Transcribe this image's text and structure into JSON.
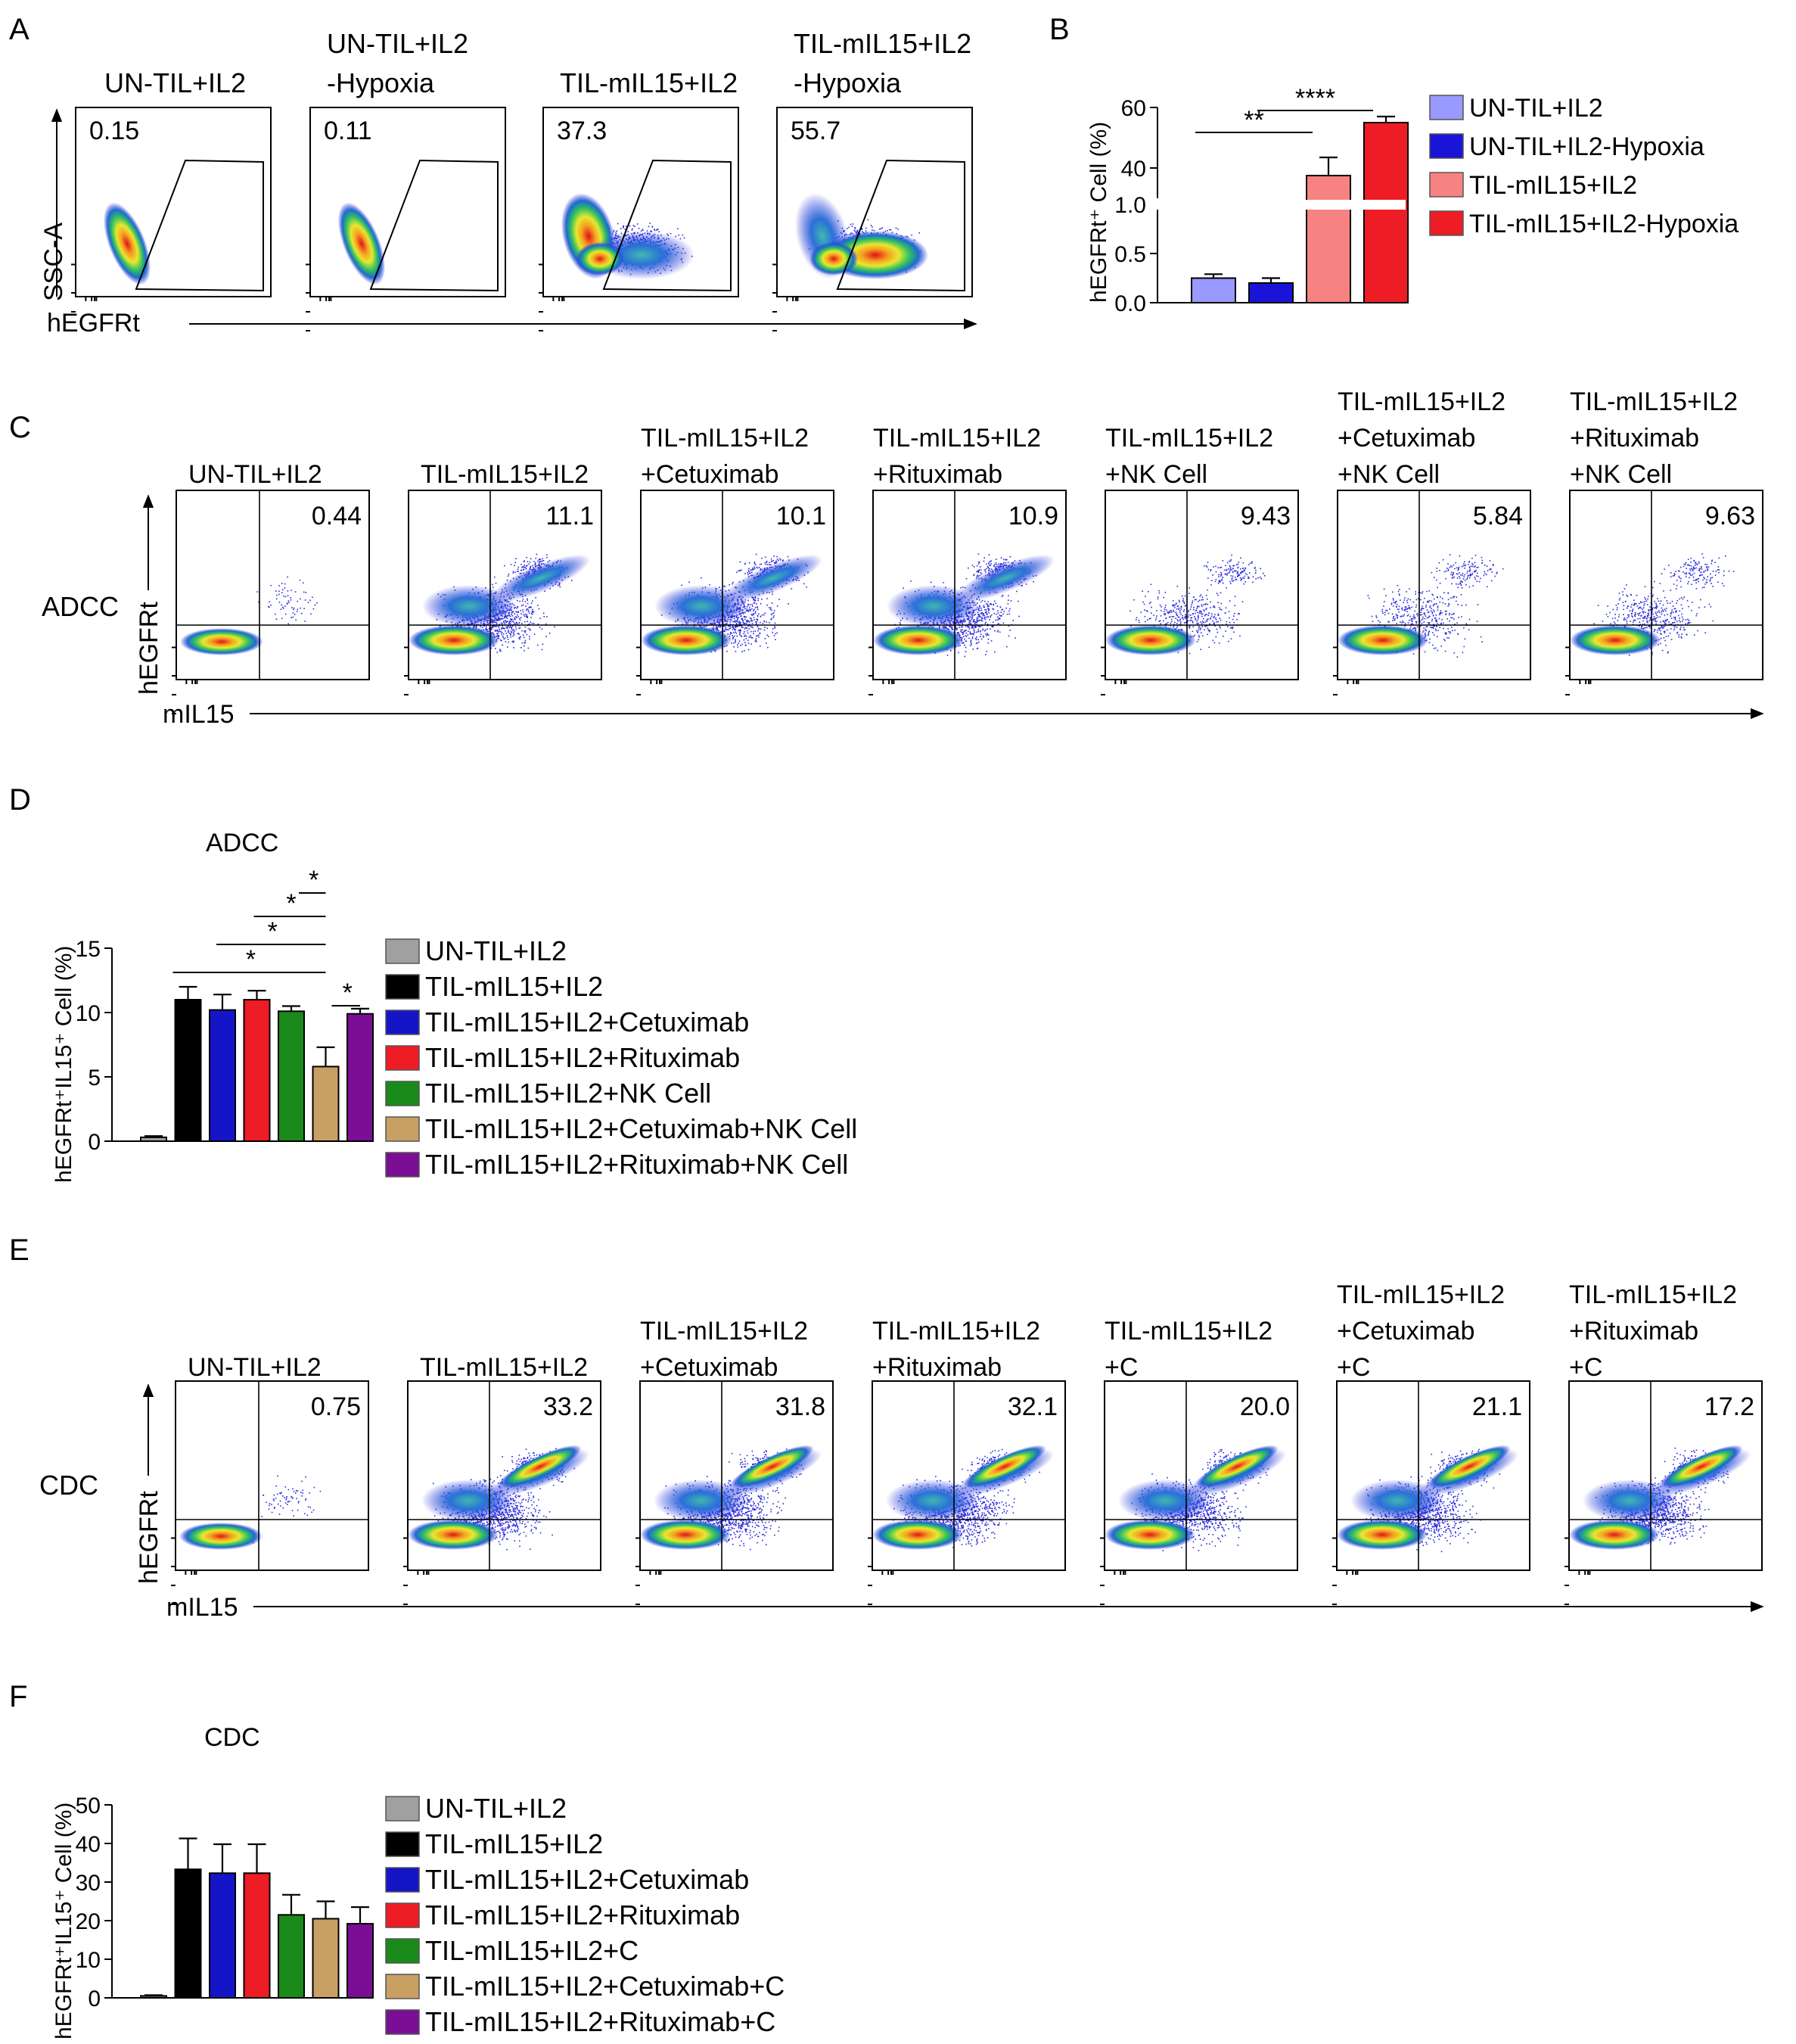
{
  "figure": {
    "panel_letters": [
      "A",
      "B",
      "C",
      "D",
      "E",
      "F"
    ]
  },
  "colors": {
    "un_til": "#9999ff",
    "un_til_hyp": "#1a14d9",
    "til": "#f68282",
    "til_hyp": "#ee1c24",
    "grey": "#a0a0a0",
    "black": "#000000",
    "blue": "#1515c8",
    "red": "#ee1c24",
    "green": "#1a8a1a",
    "tan": "#c8a064",
    "purple": "#7a0f96"
  },
  "panelA": {
    "titles": [
      [
        "UN-TIL+IL2"
      ],
      [
        "UN-TIL+IL2",
        "-Hypoxia"
      ],
      [
        "TIL-mIL15+IL2"
      ],
      [
        "TIL-mIL15+IL2",
        "-Hypoxia"
      ]
    ],
    "gate_values": [
      "0.15",
      "0.11",
      "37.3",
      "55.7"
    ],
    "y_axis_label": "SSC-A",
    "x_axis_label": "hEGFRt"
  },
  "panelC": {
    "row_label": "ADCC",
    "titles": [
      [
        "UN-TIL+IL2"
      ],
      [
        "TIL-mIL15+IL2"
      ],
      [
        "TIL-mIL15+IL2",
        "+Cetuximab"
      ],
      [
        "TIL-mIL15+IL2",
        "+Rituximab"
      ],
      [
        "TIL-mIL15+IL2",
        "+NK Cell"
      ],
      [
        "TIL-mIL15+IL2",
        "+Cetuximab",
        "+NK Cell"
      ],
      [
        "TIL-mIL15+IL2",
        "+Rituximab",
        "+NK Cell"
      ]
    ],
    "quadrant_values": [
      "0.44",
      "11.1",
      "10.1",
      "10.9",
      "9.43",
      "5.84",
      "9.63"
    ],
    "y_axis_label": "hEGFRt",
    "x_axis_label": "mIL15"
  },
  "panelE": {
    "row_label": "CDC",
    "titles": [
      [
        "UN-TIL+IL2"
      ],
      [
        "TIL-mIL15+IL2"
      ],
      [
        "TIL-mIL15+IL2",
        "+Cetuximab"
      ],
      [
        "TIL-mIL15+IL2",
        "+Rituximab"
      ],
      [
        "TIL-mIL15+IL2",
        "+C"
      ],
      [
        "TIL-mIL15+IL2",
        "+Cetuximab",
        "+C"
      ],
      [
        "TIL-mIL15+IL2",
        "+Rituximab",
        "+C"
      ]
    ],
    "quadrant_values": [
      "0.75",
      "33.2",
      "31.8",
      "32.1",
      "20.0",
      "21.1",
      "17.2"
    ],
    "y_axis_label": "hEGFRt",
    "x_axis_label": "mIL15"
  },
  "chart_data": [
    {
      "panel": "B",
      "type": "bar",
      "title": "",
      "ylabel": "hEGFRt⁺ Cell (%)",
      "broken_axis": true,
      "lower_ylim": [
        0,
        1.0
      ],
      "upper_ylim": [
        30,
        60
      ],
      "yticks_lower": [
        "0.0",
        "0.5",
        "1.0"
      ],
      "yticks_upper": [
        "40",
        "60"
      ],
      "categories": [
        "UN-TIL+IL2",
        "UN-TIL+IL2-Hypoxia",
        "TIL-mIL15+IL2",
        "TIL-mIL15+IL2-Hypoxia"
      ],
      "values": [
        0.25,
        0.2,
        37.5,
        55.0
      ],
      "errors": [
        0.04,
        0.05,
        6.0,
        2.0
      ],
      "colors": [
        "#9999ff",
        "#1a14d9",
        "#f68282",
        "#ee1c24"
      ],
      "significance": [
        {
          "label": "**",
          "from": 0,
          "to": 2
        },
        {
          "label": "****",
          "from": 1,
          "to": 3
        }
      ],
      "legend": [
        "UN-TIL+IL2",
        "UN-TIL+IL2-Hypoxia",
        "TIL-mIL15+IL2",
        "TIL-mIL15+IL2-Hypoxia"
      ]
    },
    {
      "panel": "D",
      "type": "bar",
      "title": "ADCC",
      "ylabel": "hEGFRt⁺IL15⁺ Cell (%)",
      "ylim": [
        0,
        15
      ],
      "yticks": [
        "0",
        "5",
        "10",
        "15"
      ],
      "categories": [
        "UN-TIL+IL2",
        "TIL-mIL15+IL2",
        "TIL-mIL15+IL2+Cetuximab",
        "TIL-mIL15+IL2+Rituximab",
        "TIL-mIL15+IL2+NK Cell",
        "TIL-mIL15+IL2+Cetuximab+NK Cell",
        "TIL-mIL15+IL2+Rituximab+NK Cell"
      ],
      "values": [
        0.3,
        11.0,
        10.2,
        11.0,
        10.1,
        5.8,
        9.9
      ],
      "errors": [
        0.1,
        1.0,
        1.2,
        0.7,
        0.4,
        1.5,
        0.4
      ],
      "colors": [
        "#a0a0a0",
        "#000000",
        "#1515c8",
        "#ee1c24",
        "#1a8a1a",
        "#c8a064",
        "#7a0f96"
      ],
      "significance": [
        {
          "label": "*",
          "from": 5,
          "to": 6
        },
        {
          "label": "*",
          "from": 4,
          "to": 5
        },
        {
          "label": "*",
          "from": 3,
          "to": 5
        },
        {
          "label": "*",
          "from": 2,
          "to": 5
        },
        {
          "label": "*",
          "from": 1,
          "to": 5
        }
      ],
      "legend": [
        "UN-TIL+IL2",
        "TIL-mIL15+IL2",
        "TIL-mIL15+IL2+Cetuximab",
        "TIL-mIL15+IL2+Rituximab",
        "TIL-mIL15+IL2+NK Cell",
        "TIL-mIL15+IL2+Cetuximab+NK Cell",
        "TIL-mIL15+IL2+Rituximab+NK Cell"
      ]
    },
    {
      "panel": "F",
      "type": "bar",
      "title": "CDC",
      "ylabel": "hEGFRt⁺IL15⁺ Cell (%)",
      "ylim": [
        0,
        50
      ],
      "yticks": [
        "0",
        "10",
        "20",
        "30",
        "40",
        "50"
      ],
      "categories": [
        "UN-TIL+IL2",
        "TIL-mIL15+IL2",
        "TIL-mIL15+IL2+Cetuximab",
        "TIL-mIL15+IL2+Rituximab",
        "TIL-mIL15+IL2+C",
        "TIL-mIL15+IL2+Cetuximab+C",
        "TIL-mIL15+IL2+Rituximab+C"
      ],
      "values": [
        0.5,
        33.3,
        32.3,
        32.3,
        21.5,
        20.5,
        19.2
      ],
      "errors": [
        0.2,
        8.0,
        7.5,
        7.5,
        5.2,
        4.5,
        4.3
      ],
      "colors": [
        "#a0a0a0",
        "#000000",
        "#1515c8",
        "#ee1c24",
        "#1a8a1a",
        "#c8a064",
        "#7a0f96"
      ],
      "significance": [],
      "legend": [
        "UN-TIL+IL2",
        "TIL-mIL15+IL2",
        "TIL-mIL15+IL2+Cetuximab",
        "TIL-mIL15+IL2+Rituximab",
        "TIL-mIL15+IL2+C",
        "TIL-mIL15+IL2+Cetuximab+C",
        "TIL-mIL15+IL2+Rituximab+C"
      ]
    }
  ]
}
